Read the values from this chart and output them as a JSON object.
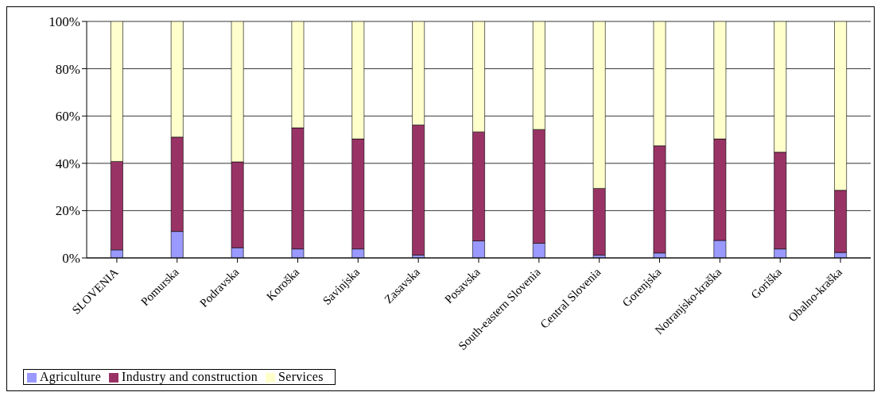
{
  "chart_data": {
    "type": "bar",
    "stacked": true,
    "categories": [
      "SLOVENIA",
      "Pomurska",
      "Podravska",
      "Koroška",
      "Savinjska",
      "Zasavska",
      "Posavska",
      "South-eastern Slovenia",
      "Central Slovenia",
      "Gorenjska",
      "Notranjsko-kraška",
      "Goriška",
      "Obalno-kraška"
    ],
    "series": [
      {
        "name": "Agriculture",
        "color": "#9999ff",
        "values": [
          3.4,
          11.2,
          4.3,
          3.8,
          3.8,
          1.2,
          7.2,
          6.2,
          1.2,
          2.1,
          7.4,
          3.8,
          2.3
        ]
      },
      {
        "name": "Industry and construction",
        "color": "#993366",
        "values": [
          37.4,
          39.9,
          36.3,
          51.2,
          46.5,
          55.0,
          46.1,
          48.1,
          28.2,
          45.3,
          42.9,
          40.9,
          26.3
        ]
      },
      {
        "name": "Services",
        "color": "#ffffcc",
        "values": [
          59.2,
          48.9,
          59.4,
          45.0,
          49.7,
          43.8,
          46.7,
          45.7,
          70.6,
          52.6,
          49.7,
          55.3,
          71.4
        ]
      }
    ],
    "ylim": [
      0,
      100
    ],
    "yticks": [
      {
        "value": 0,
        "label": "0%"
      },
      {
        "value": 20,
        "label": "20%"
      },
      {
        "value": 40,
        "label": "40%"
      },
      {
        "value": 60,
        "label": "60%"
      },
      {
        "value": 80,
        "label": "80%"
      },
      {
        "value": 100,
        "label": "100%"
      }
    ],
    "grid": "y",
    "legend": "bottom left"
  }
}
